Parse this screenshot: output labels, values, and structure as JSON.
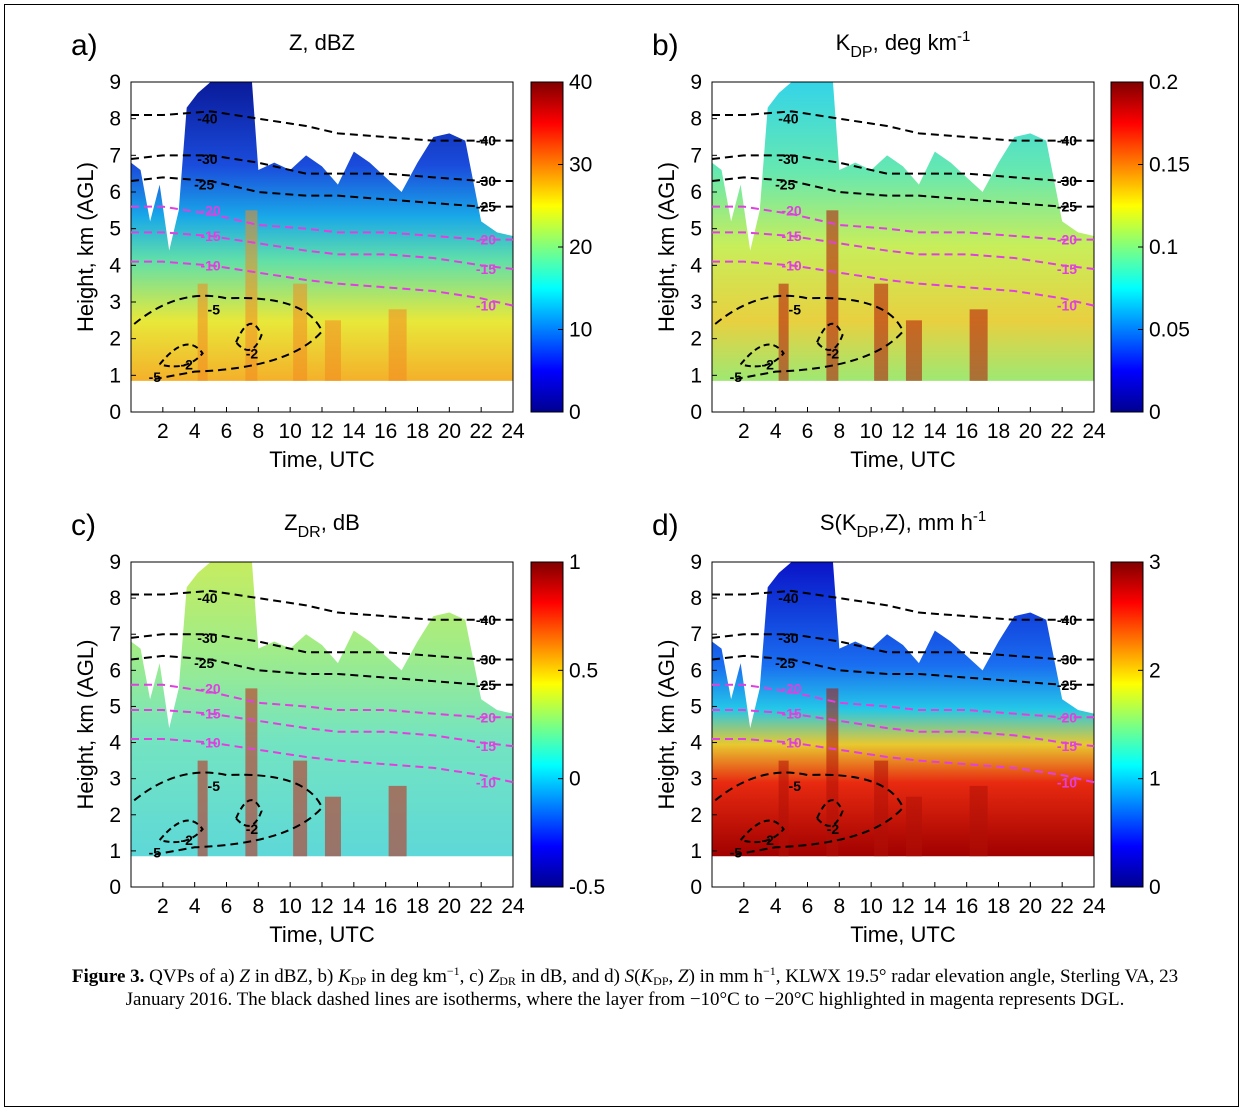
{
  "panels": [
    {
      "letter": "a)",
      "title_main": "Z, dBZ",
      "cbar_ticks": [
        "40",
        "30",
        "20",
        "10",
        "0"
      ],
      "cbar_range": [
        0,
        40
      ],
      "field": "Z"
    },
    {
      "letter": "b)",
      "title_main": "K",
      "title_sub": "DP",
      "title_rest": ", deg km",
      "title_sup": "-1",
      "cbar_ticks": [
        "0.2",
        "0.15",
        "0.1",
        "0.05",
        "0"
      ],
      "cbar_range": [
        0,
        0.2
      ],
      "field": "KDP"
    },
    {
      "letter": "c)",
      "title_main": "Z",
      "title_sub": "DR",
      "title_rest": ", dB",
      "cbar_ticks": [
        "1",
        "0.5",
        "0",
        "-0.5"
      ],
      "cbar_range": [
        -0.5,
        1
      ],
      "field": "ZDR"
    },
    {
      "letter": "d)",
      "title_main": "S(K",
      "title_sub": "DP",
      "title_rest": ",Z), mm h",
      "title_sup": "-1",
      "cbar_ticks": [
        "3",
        "2",
        "1",
        "0"
      ],
      "cbar_range": [
        0,
        3
      ],
      "field": "S"
    }
  ],
  "axes": {
    "xlabel": "Time, UTC",
    "ylabel": "Height, km (AGL)",
    "xticks": [
      "2",
      "4",
      "6",
      "8",
      "10",
      "12",
      "14",
      "16",
      "18",
      "20",
      "22",
      "24"
    ],
    "yticks": [
      "0",
      "1",
      "2",
      "3",
      "4",
      "5",
      "6",
      "7",
      "8",
      "9"
    ],
    "xlim": [
      0,
      24
    ],
    "ylim": [
      0,
      9
    ]
  },
  "isotherms": {
    "black_labels": [
      "-40",
      "-30",
      "-25",
      "-5",
      "-2",
      "-5",
      "-2"
    ],
    "magenta_labels": [
      "-20",
      "-15",
      "-10"
    ],
    "right_labels": [
      "-40",
      "-30",
      "-25",
      "-20",
      "-15",
      "-10"
    ],
    "lines": [
      {
        "value": -40,
        "color": "#000000",
        "y": [
          8.1,
          8.1,
          8.2,
          8.0,
          7.8,
          7.6,
          7.5,
          7.4,
          7.4,
          7.4
        ]
      },
      {
        "value": -30,
        "color": "#000000",
        "y": [
          6.9,
          7.0,
          7.0,
          6.8,
          6.5,
          6.5,
          6.5,
          6.4,
          6.3,
          6.3
        ]
      },
      {
        "value": -25,
        "color": "#000000",
        "y": [
          6.3,
          6.4,
          6.3,
          6.0,
          5.9,
          5.9,
          5.8,
          5.7,
          5.6,
          5.6
        ]
      },
      {
        "value": -20,
        "color": "#e040e0",
        "y": [
          5.6,
          5.6,
          5.4,
          5.1,
          5.0,
          4.9,
          4.9,
          4.8,
          4.7,
          4.7
        ]
      },
      {
        "value": -15,
        "color": "#e040e0",
        "y": [
          4.9,
          4.9,
          4.8,
          4.6,
          4.4,
          4.3,
          4.3,
          4.2,
          4.0,
          3.9
        ]
      },
      {
        "value": -10,
        "color": "#e040e0",
        "y": [
          4.1,
          4.1,
          4.0,
          3.8,
          3.6,
          3.5,
          3.4,
          3.3,
          3.1,
          2.9
        ]
      }
    ],
    "line_x": [
      0,
      2,
      5,
      8,
      11,
      13,
      16,
      19,
      22,
      24
    ]
  },
  "caption": {
    "label": "Figure 3.",
    "text_1": " QVPs of a) ",
    "z": "Z",
    "text_2": " in dBZ, b) ",
    "k": "K",
    "dp": "DP",
    "text_3": " in deg km",
    "sup1": "−1",
    "text_4": ", c) ",
    "z2": "Z",
    "dr": "DR",
    "text_5": " in dB, and d) ",
    "s": "S",
    "text_6": "(",
    "k2": "K",
    "dp2": "DP",
    "text_7": ", ",
    "z3": "Z",
    "text_8": ") in mm h",
    "sup2": "−1",
    "text_9": ", KLWX 19.5° radar elevation angle, Sterling VA, 23 January 2016. The black dashed lines are isotherms, where the layer from −10°C to −20°C highlighted in magenta represents DGL."
  }
}
